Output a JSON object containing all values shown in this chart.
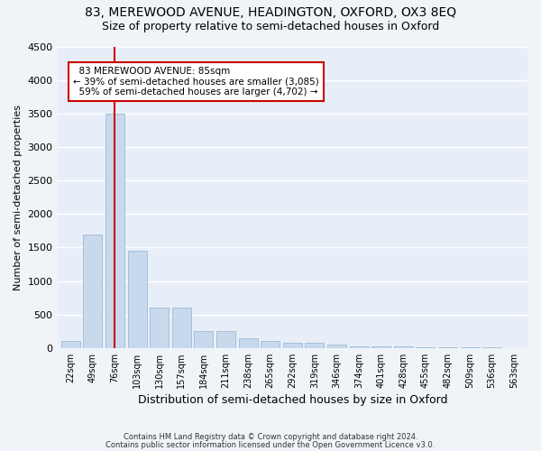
{
  "title1": "83, MEREWOOD AVENUE, HEADINGTON, OXFORD, OX3 8EQ",
  "title2": "Size of property relative to semi-detached houses in Oxford",
  "xlabel": "Distribution of semi-detached houses by size in Oxford",
  "ylabel": "Number of semi-detached properties",
  "categories": [
    "22sqm",
    "49sqm",
    "76sqm",
    "103sqm",
    "130sqm",
    "157sqm",
    "184sqm",
    "211sqm",
    "238sqm",
    "265sqm",
    "292sqm",
    "319sqm",
    "346sqm",
    "374sqm",
    "401sqm",
    "428sqm",
    "455sqm",
    "482sqm",
    "509sqm",
    "536sqm",
    "563sqm"
  ],
  "values": [
    100,
    1700,
    3500,
    1450,
    600,
    600,
    250,
    250,
    150,
    100,
    75,
    75,
    50,
    30,
    25,
    20,
    15,
    10,
    8,
    5,
    3
  ],
  "bar_color": "#c8d9ee",
  "bar_edge_color": "#9fbbd4",
  "ylim": [
    0,
    4500
  ],
  "yticks": [
    0,
    500,
    1000,
    1500,
    2000,
    2500,
    3000,
    3500,
    4000,
    4500
  ],
  "property_label": "83 MEREWOOD AVENUE: 85sqm",
  "pct_smaller": 39,
  "pct_larger": 59,
  "n_smaller": "3,085",
  "n_larger": "4,702",
  "vline_bin_index": 2,
  "vline_color": "#cc0000",
  "annotation_box_edge": "#cc0000",
  "footnote1": "Contains HM Land Registry data © Crown copyright and database right 2024.",
  "footnote2": "Contains public sector information licensed under the Open Government Licence v3.0.",
  "background_color": "#e8eef8",
  "grid_color": "#ffffff",
  "title1_fontsize": 10,
  "title2_fontsize": 9
}
